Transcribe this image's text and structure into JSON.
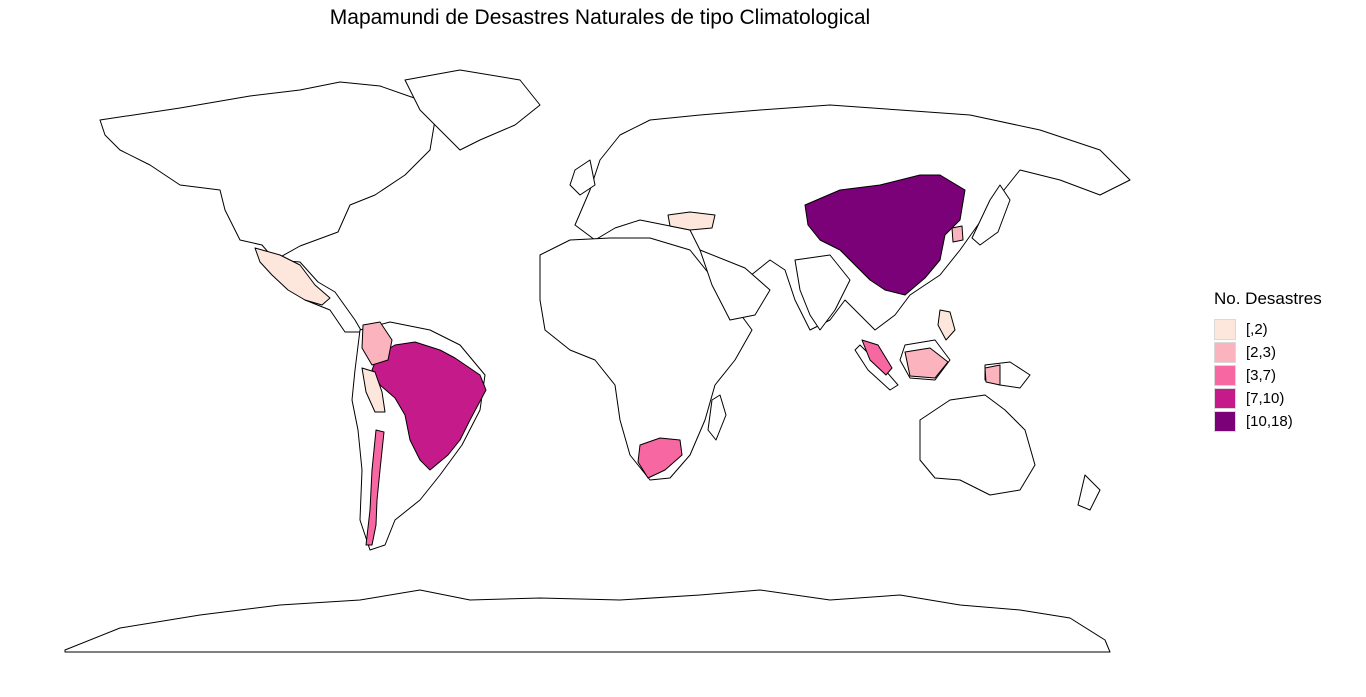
{
  "title": "Mapamundi de Desastres Naturales de tipo Climatological",
  "legend": {
    "title": "No. Desastres",
    "items": [
      {
        "label": "[,2)",
        "color": "#fde7dc"
      },
      {
        "label": "[2,3)",
        "color": "#fbb4bd"
      },
      {
        "label": "[3,7)",
        "color": "#f767a1"
      },
      {
        "label": "[7,10)",
        "color": "#c51b8a"
      },
      {
        "label": "[10,18)",
        "color": "#7a0177"
      }
    ]
  },
  "regions": [
    {
      "name": "China",
      "bin": "[10,18)"
    },
    {
      "name": "Brazil",
      "bin": "[7,10)"
    },
    {
      "name": "South Africa",
      "bin": "[3,7)"
    },
    {
      "name": "Chile",
      "bin": "[3,7)"
    },
    {
      "name": "Malaysia",
      "bin": "[3,7)"
    },
    {
      "name": "Colombia",
      "bin": "[2,3)"
    },
    {
      "name": "Indonesia",
      "bin": "[2,3)"
    },
    {
      "name": "Papua New Guinea",
      "bin": "[2,3)"
    },
    {
      "name": "South Korea",
      "bin": "[2,3)"
    },
    {
      "name": "Mexico",
      "bin": "[,2)"
    },
    {
      "name": "Peru",
      "bin": "[,2)"
    },
    {
      "name": "Turkey",
      "bin": "[,2)"
    },
    {
      "name": "Philippines",
      "bin": "[,2)"
    }
  ]
}
